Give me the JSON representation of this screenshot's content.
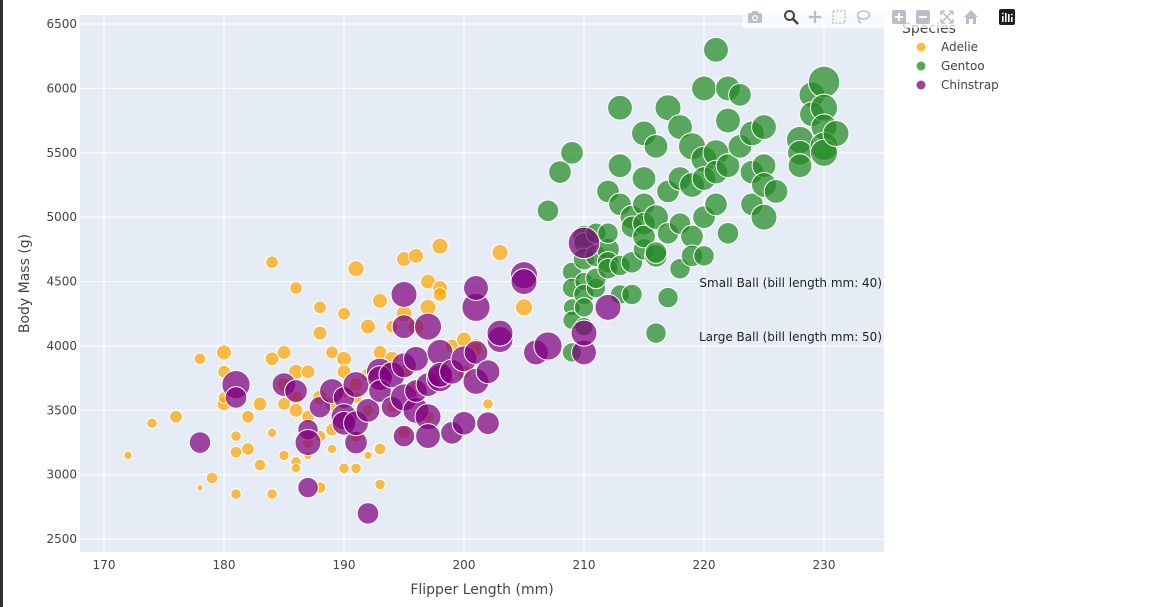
{
  "chart_data": {
    "type": "scatter",
    "title": "",
    "xlabel": "Flipper Length (mm)",
    "ylabel": "Body Mass (g)",
    "xlim": [
      168,
      235
    ],
    "ylim": [
      2400,
      6570
    ],
    "x_ticks": [
      170,
      180,
      190,
      200,
      210,
      220,
      230
    ],
    "y_ticks": [
      2500,
      3000,
      3500,
      4000,
      4500,
      5000,
      5500,
      6000,
      6500
    ],
    "grid": true,
    "legend": {
      "title": "Species",
      "placement": "right"
    },
    "size_variable": "bill length mm",
    "series": [
      {
        "name": "Adelie",
        "color": "#FFA500",
        "points": [
          [
            172,
            3150,
            34
          ],
          [
            174,
            3400,
            36
          ],
          [
            176,
            3450,
            38
          ],
          [
            178,
            3900,
            37
          ],
          [
            178,
            2900,
            32
          ],
          [
            179,
            2975,
            37
          ],
          [
            180,
            3950,
            40
          ],
          [
            180,
            3550,
            39
          ],
          [
            180,
            3600,
            37
          ],
          [
            180,
            3800,
            38
          ],
          [
            181,
            3300,
            36
          ],
          [
            181,
            3175,
            37
          ],
          [
            181,
            2850,
            36
          ],
          [
            182,
            3450,
            38
          ],
          [
            182,
            3200,
            38
          ],
          [
            183,
            3550,
            39
          ],
          [
            183,
            3075,
            37
          ],
          [
            184,
            4650,
            38
          ],
          [
            184,
            3900,
            39
          ],
          [
            184,
            3325,
            35
          ],
          [
            184,
            2850,
            36
          ],
          [
            185,
            3950,
            39
          ],
          [
            185,
            3700,
            39
          ],
          [
            185,
            3550,
            38
          ],
          [
            185,
            3150,
            36
          ],
          [
            186,
            4450,
            38
          ],
          [
            186,
            3800,
            40
          ],
          [
            186,
            3600,
            39
          ],
          [
            186,
            3500,
            39
          ],
          [
            186,
            3100,
            36
          ],
          [
            186,
            3050,
            35
          ],
          [
            187,
            3800,
            39
          ],
          [
            187,
            3450,
            38
          ],
          [
            187,
            3300,
            36
          ],
          [
            187,
            3250,
            37
          ],
          [
            187,
            3150,
            34
          ],
          [
            188,
            4300,
            38
          ],
          [
            188,
            4100,
            39
          ],
          [
            188,
            3600,
            40
          ],
          [
            188,
            3300,
            37
          ],
          [
            188,
            2900,
            37
          ],
          [
            189,
            3950,
            38
          ],
          [
            189,
            3550,
            40
          ],
          [
            189,
            3350,
            38
          ],
          [
            189,
            3200,
            35
          ],
          [
            190,
            4250,
            38
          ],
          [
            190,
            3900,
            40
          ],
          [
            190,
            3800,
            39
          ],
          [
            190,
            3650,
            39
          ],
          [
            190,
            3450,
            37
          ],
          [
            190,
            3050,
            36
          ],
          [
            191,
            4600,
            41
          ],
          [
            191,
            3700,
            39
          ],
          [
            191,
            3600,
            37
          ],
          [
            191,
            3300,
            37
          ],
          [
            191,
            3050,
            36
          ],
          [
            192,
            4150,
            40
          ],
          [
            192,
            3775,
            39
          ],
          [
            192,
            3500,
            37
          ],
          [
            192,
            3150,
            34
          ],
          [
            193,
            4350,
            40
          ],
          [
            193,
            3950,
            39
          ],
          [
            193,
            3700,
            39
          ],
          [
            193,
            3200,
            37
          ],
          [
            193,
            2925,
            36
          ],
          [
            194,
            4150,
            38
          ],
          [
            194,
            3900,
            40
          ],
          [
            194,
            3525,
            37
          ],
          [
            195,
            4675,
            40
          ],
          [
            195,
            4250,
            41
          ],
          [
            195,
            3800,
            40
          ],
          [
            195,
            3325,
            38
          ],
          [
            196,
            4700,
            40
          ],
          [
            196,
            4150,
            41
          ],
          [
            196,
            3675,
            38
          ],
          [
            197,
            4500,
            40
          ],
          [
            197,
            4300,
            41
          ],
          [
            197,
            3450,
            38
          ],
          [
            198,
            4775,
            41
          ],
          [
            198,
            4450,
            40
          ],
          [
            198,
            4400,
            39
          ],
          [
            199,
            4000,
            39
          ],
          [
            200,
            4050,
            40
          ],
          [
            200,
            3800,
            39
          ],
          [
            201,
            4000,
            40
          ],
          [
            201,
            3975,
            39
          ],
          [
            202,
            3550,
            36
          ],
          [
            203,
            4725,
            41
          ],
          [
            205,
            4300,
            42
          ]
        ]
      },
      {
        "name": "Gentoo",
        "color": "#228B22",
        "points": [
          [
            207,
            5050,
            46
          ],
          [
            208,
            5350,
            47
          ],
          [
            209,
            5500,
            47
          ],
          [
            209,
            4575,
            44
          ],
          [
            209,
            4450,
            44
          ],
          [
            209,
            4300,
            42
          ],
          [
            209,
            4200,
            43
          ],
          [
            209,
            3950,
            44
          ],
          [
            210,
            4850,
            47
          ],
          [
            210,
            4800,
            45
          ],
          [
            210,
            4675,
            46
          ],
          [
            210,
            4500,
            43
          ],
          [
            210,
            4400,
            45
          ],
          [
            210,
            4300,
            44
          ],
          [
            210,
            4150,
            43
          ],
          [
            211,
            4700,
            46
          ],
          [
            211,
            4450,
            44
          ],
          [
            211,
            4525,
            45
          ],
          [
            211,
            4875,
            45
          ],
          [
            212,
            5200,
            47
          ],
          [
            212,
            4750,
            47
          ],
          [
            212,
            4875,
            45
          ],
          [
            212,
            4650,
            46
          ],
          [
            212,
            4600,
            45
          ],
          [
            213,
            5850,
            49
          ],
          [
            213,
            5400,
            48
          ],
          [
            213,
            5100,
            47
          ],
          [
            213,
            4400,
            44
          ],
          [
            213,
            4625,
            45
          ],
          [
            214,
            5000,
            48
          ],
          [
            214,
            4925,
            46
          ],
          [
            214,
            4650,
            46
          ],
          [
            214,
            4400,
            45
          ],
          [
            215,
            5650,
            49
          ],
          [
            215,
            5300,
            48
          ],
          [
            215,
            5100,
            47
          ],
          [
            215,
            4950,
            47
          ],
          [
            215,
            4750,
            46
          ],
          [
            215,
            4850,
            47
          ],
          [
            216,
            5550,
            48
          ],
          [
            216,
            5000,
            49
          ],
          [
            216,
            4700,
            47
          ],
          [
            216,
            4100,
            45
          ],
          [
            216,
            4725,
            46
          ],
          [
            217,
            5850,
            50
          ],
          [
            217,
            5200,
            47
          ],
          [
            217,
            4875,
            46
          ],
          [
            217,
            4375,
            45
          ],
          [
            218,
            5700,
            49
          ],
          [
            218,
            5300,
            48
          ],
          [
            218,
            4950,
            46
          ],
          [
            218,
            4600,
            45
          ],
          [
            219,
            5550,
            51
          ],
          [
            219,
            5250,
            49
          ],
          [
            219,
            4850,
            47
          ],
          [
            219,
            4700,
            46
          ],
          [
            220,
            6000,
            49
          ],
          [
            220,
            5450,
            50
          ],
          [
            220,
            5300,
            48
          ],
          [
            220,
            5000,
            47
          ],
          [
            220,
            4700,
            45
          ],
          [
            221,
            6300,
            49
          ],
          [
            221,
            5500,
            50
          ],
          [
            221,
            5350,
            48
          ],
          [
            221,
            5100,
            47
          ],
          [
            222,
            6000,
            49
          ],
          [
            222,
            5750,
            49
          ],
          [
            222,
            5400,
            48
          ],
          [
            222,
            4875,
            46
          ],
          [
            223,
            5950,
            47
          ],
          [
            223,
            5550,
            48
          ],
          [
            224,
            5350,
            48
          ],
          [
            224,
            5650,
            49
          ],
          [
            224,
            5100,
            47
          ],
          [
            225,
            5700,
            49
          ],
          [
            225,
            5400,
            48
          ],
          [
            225,
            5250,
            49
          ],
          [
            225,
            5000,
            50
          ],
          [
            226,
            5200,
            48
          ],
          [
            228,
            5600,
            51
          ],
          [
            228,
            5500,
            49
          ],
          [
            228,
            5400,
            48
          ],
          [
            229,
            5950,
            50
          ],
          [
            229,
            5800,
            49
          ],
          [
            230,
            6050,
            55
          ],
          [
            230,
            5850,
            51
          ],
          [
            230,
            5700,
            50
          ],
          [
            230,
            5550,
            52
          ],
          [
            230,
            5500,
            51
          ],
          [
            231,
            5650,
            50
          ]
        ]
      },
      {
        "name": "Chinstrap",
        "color": "#800080",
        "points": [
          [
            178,
            3250,
            46
          ],
          [
            181,
            3700,
            52
          ],
          [
            181,
            3600,
            46
          ],
          [
            185,
            3700,
            48
          ],
          [
            186,
            3650,
            47
          ],
          [
            187,
            3350,
            45
          ],
          [
            187,
            3250,
            50
          ],
          [
            187,
            2900,
            45
          ],
          [
            188,
            3525,
            46
          ],
          [
            189,
            3650,
            49
          ],
          [
            190,
            3600,
            46
          ],
          [
            190,
            3450,
            50
          ],
          [
            190,
            3400,
            48
          ],
          [
            191,
            3700,
            50
          ],
          [
            191,
            3250,
            47
          ],
          [
            191,
            3400,
            49
          ],
          [
            192,
            2700,
            46
          ],
          [
            192,
            3500,
            48
          ],
          [
            193,
            3800,
            51
          ],
          [
            193,
            3750,
            49
          ],
          [
            193,
            3650,
            47
          ],
          [
            194,
            3525,
            46
          ],
          [
            194,
            3775,
            50
          ],
          [
            195,
            4400,
            50
          ],
          [
            195,
            4150,
            48
          ],
          [
            195,
            3850,
            49
          ],
          [
            195,
            3600,
            51
          ],
          [
            195,
            3300,
            46
          ],
          [
            196,
            3900,
            49
          ],
          [
            196,
            3500,
            50
          ],
          [
            196,
            3650,
            47
          ],
          [
            197,
            4150,
            51
          ],
          [
            197,
            3700,
            48
          ],
          [
            197,
            3450,
            50
          ],
          [
            197,
            3300,
            49
          ],
          [
            198,
            3950,
            50
          ],
          [
            198,
            3750,
            51
          ],
          [
            198,
            3775,
            49
          ],
          [
            199,
            3800,
            49
          ],
          [
            199,
            3325,
            47
          ],
          [
            200,
            3400,
            48
          ],
          [
            200,
            3900,
            50
          ],
          [
            201,
            3950,
            48
          ],
          [
            201,
            4300,
            52
          ],
          [
            201,
            4450,
            49
          ],
          [
            201,
            3725,
            50
          ],
          [
            202,
            3800,
            48
          ],
          [
            202,
            3400,
            47
          ],
          [
            203,
            4050,
            50
          ],
          [
            203,
            4100,
            50
          ],
          [
            205,
            4550,
            51
          ],
          [
            205,
            4500,
            50
          ],
          [
            206,
            3950,
            49
          ],
          [
            207,
            4000,
            52
          ],
          [
            210,
            3950,
            49
          ],
          [
            210,
            4100,
            50
          ],
          [
            210,
            4800,
            55
          ],
          [
            212,
            4300,
            50
          ]
        ]
      }
    ],
    "annotations": [
      {
        "text": "Small Ball (bill length mm: 40)",
        "x": 235,
        "y": 4490
      },
      {
        "text": "Large Ball (bill length mm: 50)",
        "x": 235,
        "y": 4070
      }
    ]
  },
  "modebar": {
    "buttons": [
      "camera-icon",
      "zoom-icon",
      "pan-icon",
      "box-select-icon",
      "lasso-select-icon",
      "zoom-in-icon",
      "zoom-out-icon",
      "autoscale-icon",
      "reset-axes-icon",
      "plotly-logo-icon"
    ]
  }
}
